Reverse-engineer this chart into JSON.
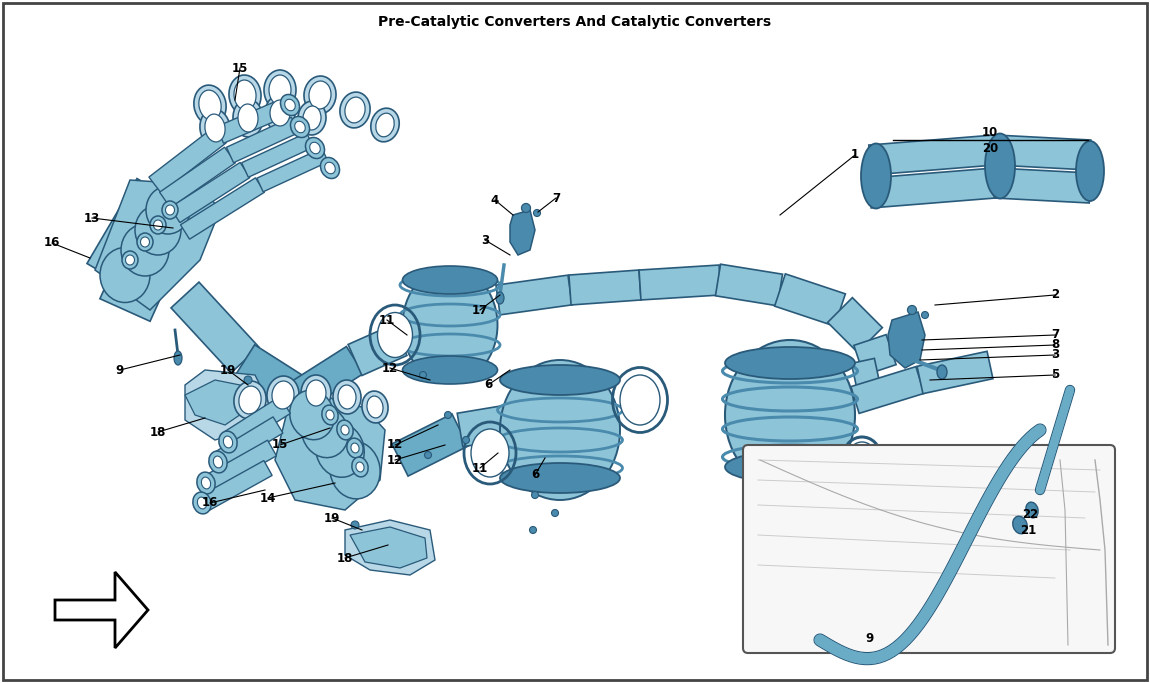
{
  "title": "Pre-Catalytic Converters And Catalytic Converters",
  "bg_color": "#FFFFFF",
  "part_color": "#8EC4D8",
  "part_color_mid": "#6AABC5",
  "part_color_dark": "#4A8BAD",
  "part_color_light": "#B8D8E8",
  "outline_color": "#2A5A7A",
  "line_color": "#333333",
  "text_color": "#000000",
  "inset_bg": "#F5F5F5",
  "figsize": [
    11.5,
    6.83
  ],
  "dpi": 100
}
